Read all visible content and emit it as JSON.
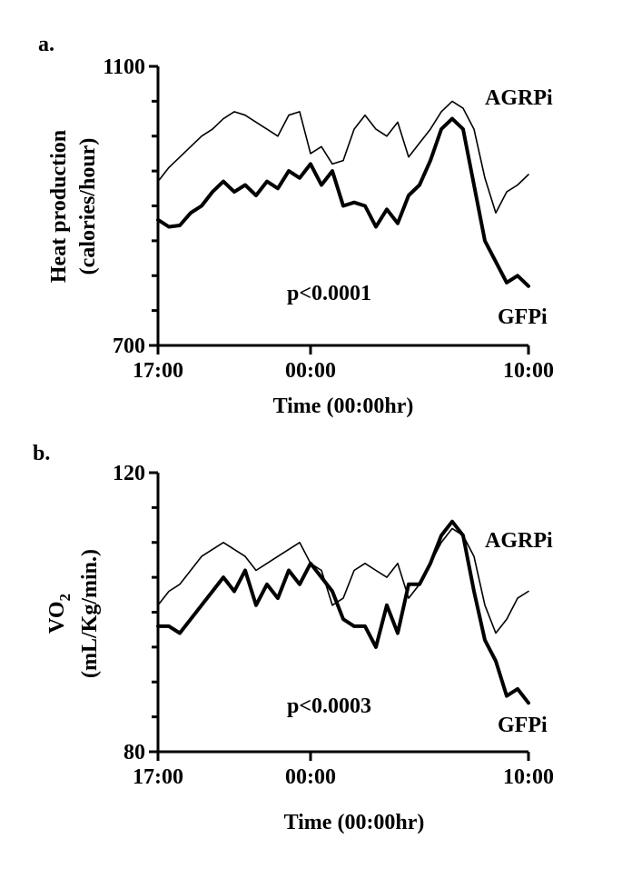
{
  "chart_data": [
    {
      "type": "line",
      "panel_label": "a.",
      "ylabel_line1": "Heat production",
      "ylabel_line2": "(calories/hour)",
      "xlabel": "Time (00:00hr)",
      "ylim": [
        700,
        1100
      ],
      "y_ticks": [
        700,
        1100
      ],
      "x_tick_labels": [
        "17:00",
        "00:00",
        "10:00"
      ],
      "x_tick_hours": [
        0,
        7,
        17
      ],
      "annotation": "p<0.0001",
      "series": [
        {
          "name": "AGRPi",
          "x": [
            0,
            0.5,
            1,
            1.5,
            2,
            2.5,
            3,
            3.5,
            4,
            4.5,
            5,
            5.5,
            6,
            6.5,
            7,
            7.5,
            8,
            8.5,
            9,
            9.5,
            10,
            10.5,
            11,
            11.5,
            12,
            12.5,
            13,
            13.5,
            14,
            14.5,
            15,
            15.5,
            16,
            16.5,
            17
          ],
          "values": [
            935,
            955,
            970,
            985,
            1000,
            1010,
            1025,
            1035,
            1030,
            1020,
            1010,
            1000,
            1030,
            1035,
            975,
            985,
            960,
            965,
            1010,
            1030,
            1010,
            1000,
            1020,
            970,
            990,
            1010,
            1035,
            1050,
            1040,
            1010,
            940,
            890,
            920,
            930,
            945
          ]
        },
        {
          "name": "GFPi",
          "x": [
            0,
            0.5,
            1,
            1.5,
            2,
            2.5,
            3,
            3.5,
            4,
            4.5,
            5,
            5.5,
            6,
            6.5,
            7,
            7.5,
            8,
            8.5,
            9,
            9.5,
            10,
            10.5,
            11,
            11.5,
            12,
            12.5,
            13,
            13.5,
            14,
            14.5,
            15,
            15.5,
            16,
            16.5,
            17
          ],
          "values": [
            880,
            870,
            872,
            890,
            900,
            920,
            935,
            920,
            930,
            915,
            935,
            925,
            950,
            940,
            960,
            930,
            950,
            900,
            905,
            900,
            870,
            895,
            875,
            915,
            930,
            965,
            1010,
            1025,
            1010,
            930,
            850,
            820,
            790,
            800,
            785
          ]
        }
      ]
    },
    {
      "type": "line",
      "panel_label": "b.",
      "ylabel_main": "VO",
      "ylabel_sub": "2",
      "ylabel_line2": "(mL/Kg/min.)",
      "xlabel": "Time (00:00hr)",
      "ylim": [
        80,
        120
      ],
      "y_ticks": [
        80,
        120
      ],
      "x_tick_labels": [
        "17:00",
        "00:00",
        "10:00"
      ],
      "x_tick_hours": [
        0,
        7,
        17
      ],
      "annotation": "p<0.0003",
      "series": [
        {
          "name": "AGRPi",
          "x": [
            0,
            0.5,
            1,
            1.5,
            2,
            2.5,
            3,
            3.5,
            4,
            4.5,
            5,
            5.5,
            6,
            6.5,
            7,
            7.5,
            8,
            8.5,
            9,
            9.5,
            10,
            10.5,
            11,
            11.5,
            12,
            12.5,
            13,
            13.5,
            14,
            14.5,
            15,
            15.5,
            16,
            16.5,
            17
          ],
          "values": [
            101,
            103,
            104,
            106,
            108,
            109,
            110,
            109,
            108,
            106,
            107,
            108,
            109,
            110,
            107,
            106,
            101,
            102,
            106,
            107,
            106,
            105,
            107,
            102,
            104,
            107,
            110,
            112,
            111,
            108,
            101,
            97,
            99,
            102,
            103
          ]
        },
        {
          "name": "GFPi",
          "x": [
            0,
            0.5,
            1,
            1.5,
            2,
            2.5,
            3,
            3.5,
            4,
            4.5,
            5,
            5.5,
            6,
            6.5,
            7,
            7.5,
            8,
            8.5,
            9,
            9.5,
            10,
            10.5,
            11,
            11.5,
            12,
            12.5,
            13,
            13.5,
            14,
            14.5,
            15,
            15.5,
            16,
            16.5,
            17
          ],
          "values": [
            98,
            98,
            97,
            99,
            101,
            103,
            105,
            103,
            106,
            101,
            104,
            102,
            106,
            104,
            107,
            105,
            103,
            99,
            98,
            98,
            95,
            101,
            97,
            104,
            104,
            107,
            111,
            113,
            111,
            103,
            96,
            93,
            88,
            89,
            87
          ]
        }
      ]
    }
  ]
}
